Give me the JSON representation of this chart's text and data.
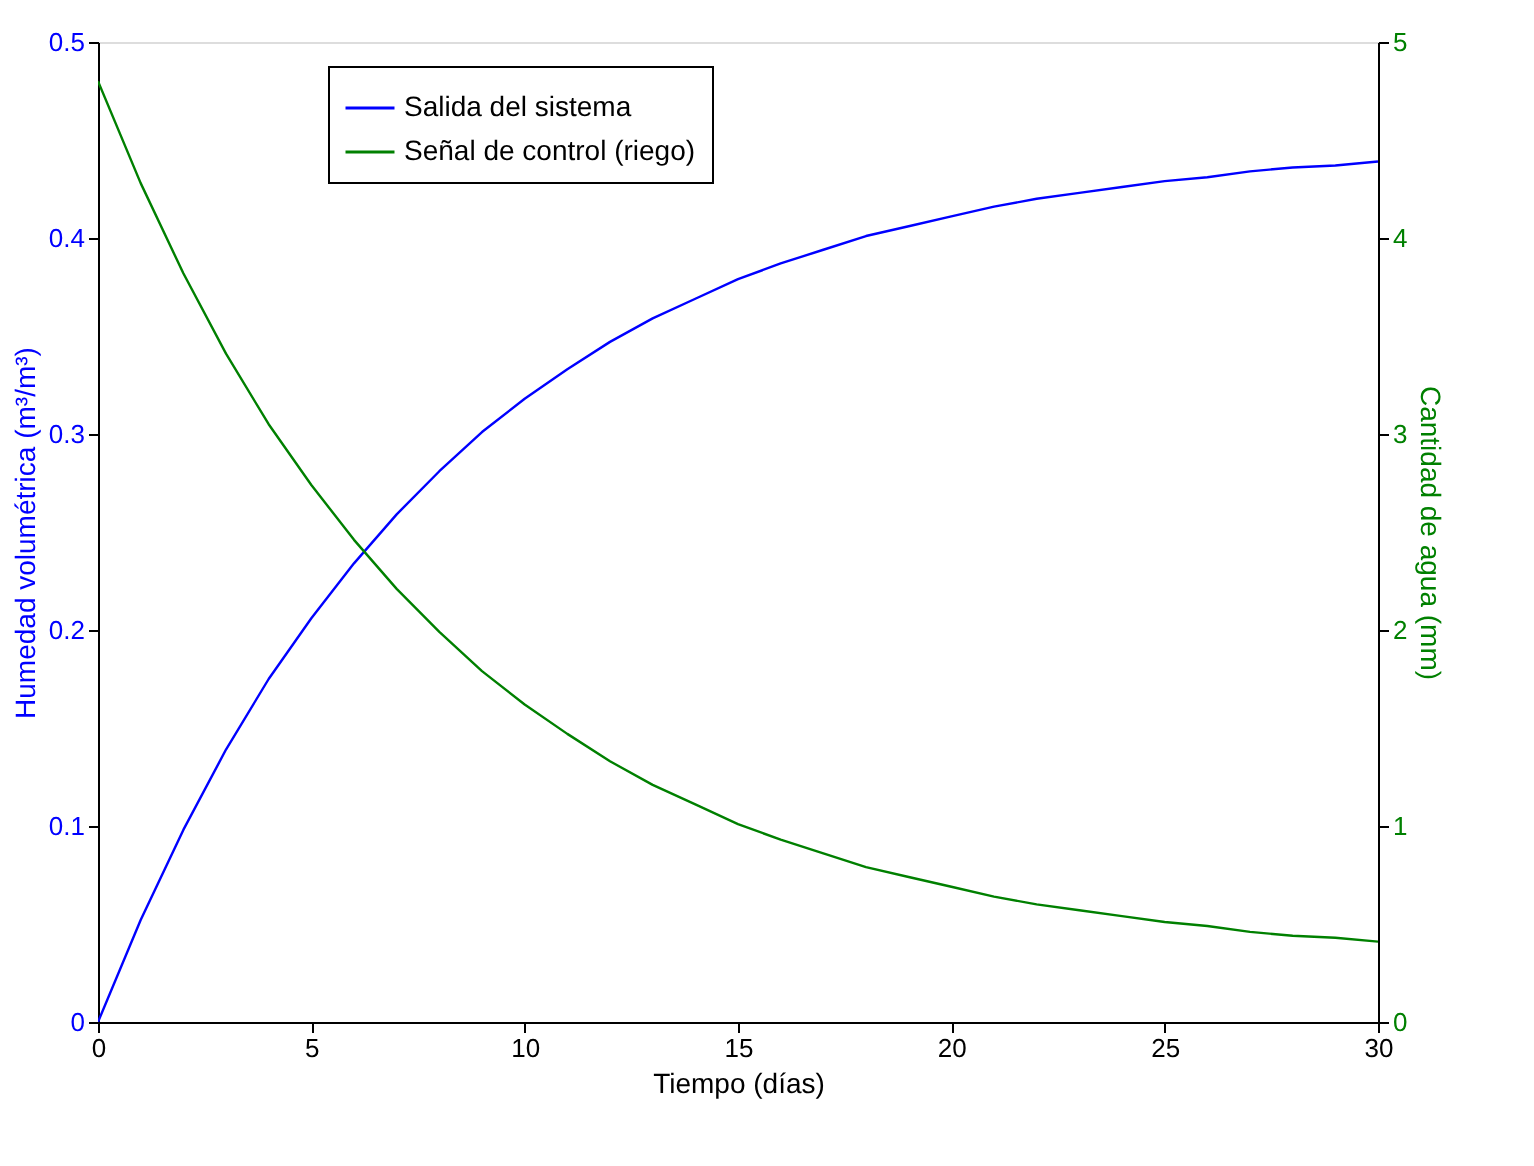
{
  "chart_data": {
    "type": "line",
    "xlabel": "Tiempo (días)",
    "ylabel": "Humedad volumétrica (m³/m³)",
    "y2label": "Cantidad de agua (mm)",
    "x": [
      0,
      1,
      2,
      3,
      4,
      5,
      6,
      7,
      8,
      9,
      10,
      11,
      12,
      13,
      14,
      15,
      16,
      17,
      18,
      19,
      20,
      21,
      22,
      23,
      24,
      25,
      26,
      27,
      28,
      29,
      30
    ],
    "series": [
      {
        "name": "Salida del sistema",
        "color": "#0000ff",
        "values": [
          0,
          0.052,
          0.098,
          0.139,
          0.175,
          0.206,
          0.234,
          0.259,
          0.281,
          0.301,
          0.318,
          0.333,
          0.347,
          0.359,
          0.369,
          0.379,
          0.387,
          0.394,
          0.401,
          0.406,
          0.411,
          0.416,
          0.42,
          0.423,
          0.426,
          0.429,
          0.431,
          0.434,
          0.436,
          0.437,
          0.439
        ]
      },
      {
        "name": "Señal de control (riego)",
        "color": "#008000",
        "axis": "y2",
        "values": [
          4.8,
          4.28,
          3.82,
          3.41,
          3.05,
          2.74,
          2.46,
          2.21,
          1.99,
          1.79,
          1.62,
          1.47,
          1.33,
          1.21,
          1.11,
          1.01,
          0.93,
          0.86,
          0.79,
          0.74,
          0.69,
          0.64,
          0.6,
          0.57,
          0.54,
          0.51,
          0.49,
          0.46,
          0.44,
          0.43,
          0.41
        ]
      }
    ],
    "xlim": [
      0,
      30
    ],
    "xticks": [
      0,
      5,
      10,
      15,
      20,
      25,
      30
    ],
    "ylim": [
      0,
      0.5
    ],
    "yticks": [
      0,
      0.1,
      0.2,
      0.3,
      0.4,
      0.5
    ],
    "y2lim": [
      0,
      5
    ],
    "y2ticks": [
      0,
      1,
      2,
      3,
      4,
      5
    ],
    "grid": false,
    "legend": "top left",
    "marker": "none",
    "line_style": "solid"
  }
}
